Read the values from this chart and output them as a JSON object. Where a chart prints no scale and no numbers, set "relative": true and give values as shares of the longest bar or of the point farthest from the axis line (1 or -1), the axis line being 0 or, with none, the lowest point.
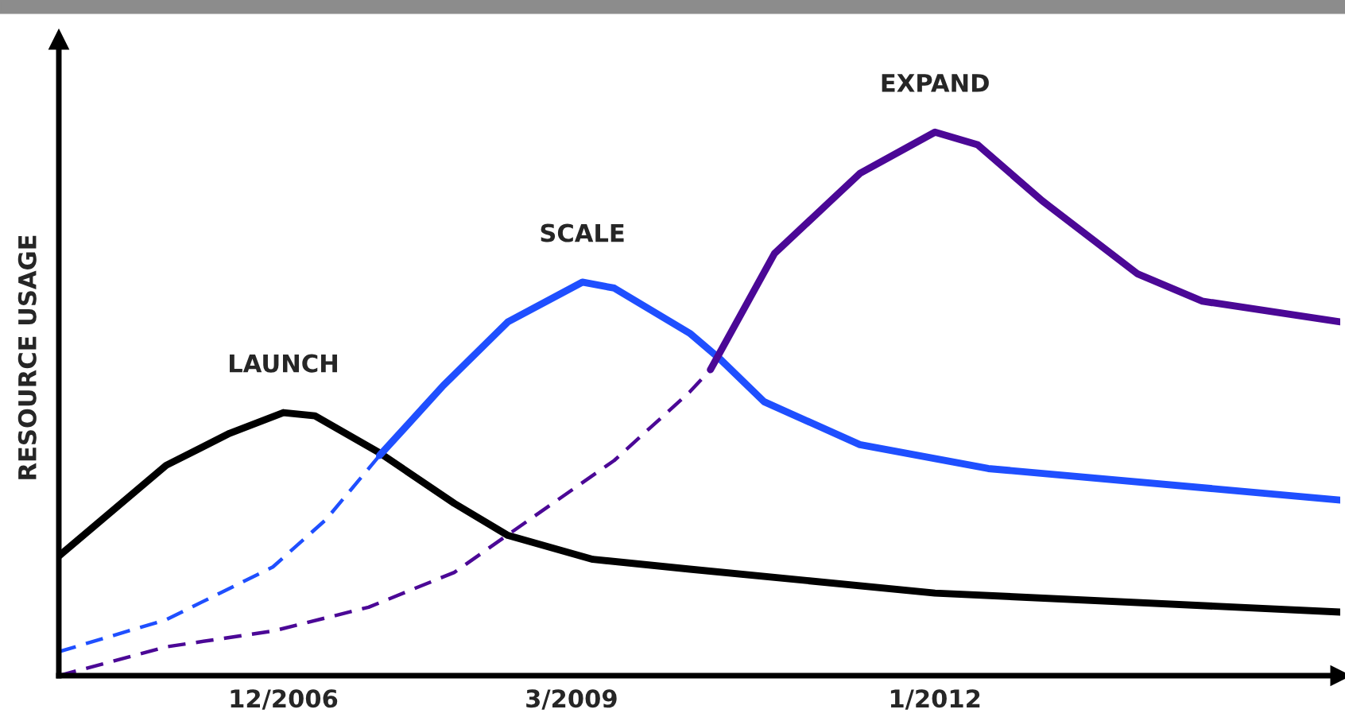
{
  "chart_data": {
    "type": "line",
    "ylabel": "RESOURCE USAGE",
    "relative": true,
    "grid": false,
    "legend": false,
    "marker": "none",
    "xlim": [
      "2005-03",
      "2015-03"
    ],
    "xticks": [
      {
        "value": "2006-12",
        "label": "12/2006"
      },
      {
        "value": "2009-03",
        "label": "3/2009"
      },
      {
        "value": "2012-01",
        "label": "1/2012"
      }
    ],
    "series": [
      {
        "name": "LAUNCH",
        "color": "#000000",
        "line_style": "solid",
        "x": [
          "2005-03",
          "2006-01",
          "2006-07",
          "2006-12",
          "2007-03",
          "2007-09",
          "2008-04",
          "2008-09",
          "2009-05",
          "2010-02",
          "2012-01",
          "2015-03"
        ],
        "values": [
          0.22,
          0.387,
          0.446,
          0.484,
          0.478,
          0.41,
          0.317,
          0.258,
          0.214,
          0.196,
          0.152,
          0.117
        ]
      },
      {
        "color": "#1f4fff",
        "line_style": "dashed",
        "x": [
          "2005-03",
          "2006-01",
          "2006-11",
          "2007-04",
          "2007-09"
        ],
        "values": [
          0.044,
          0.103,
          0.2,
          0.287,
          0.405
        ]
      },
      {
        "name": "SCALE",
        "color": "#1f4fff",
        "line_style": "solid",
        "x": [
          "2007-09",
          "2008-03",
          "2008-09",
          "2009-04",
          "2009-07",
          "2010-02",
          "2010-05",
          "2010-09",
          "2011-06",
          "2012-06",
          "2015-03"
        ],
        "values": [
          0.405,
          0.534,
          0.651,
          0.724,
          0.713,
          0.63,
          0.581,
          0.504,
          0.425,
          0.381,
          0.323
        ]
      },
      {
        "color": "#4b0896",
        "line_style": "dashed",
        "x": [
          "2005-03",
          "2006-01",
          "2006-11",
          "2007-08",
          "2008-04",
          "2008-11",
          "2009-07",
          "2010-02",
          "2010-04"
        ],
        "values": [
          0,
          0.053,
          0.082,
          0.126,
          0.19,
          0.287,
          0.396,
          0.522,
          0.563
        ]
      },
      {
        "name": "EXPAND",
        "color": "#4b0896",
        "line_style": "solid",
        "x": [
          "2010-04",
          "2010-10",
          "2011-06",
          "2012-01",
          "2012-05",
          "2012-11",
          "2013-08",
          "2014-02",
          "2015-03"
        ],
        "values": [
          0.563,
          0.777,
          0.924,
          1.0,
          0.977,
          0.874,
          0.739,
          0.689,
          0.651
        ]
      }
    ]
  }
}
